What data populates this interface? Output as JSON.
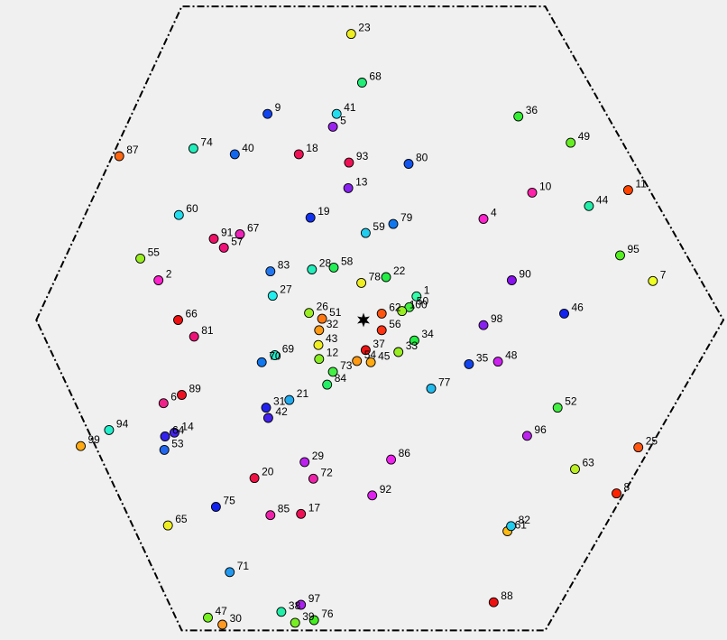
{
  "chart_data": {
    "type": "scatter",
    "title": "",
    "xlabel": "",
    "ylabel": "",
    "grid": false,
    "legend": "none",
    "boundary": {
      "shape": "hexagon",
      "style": "dash-dot",
      "color": "#000000",
      "vertices": [
        [
          0.05,
          0.5
        ],
        [
          0.25,
          0.01
        ],
        [
          0.75,
          0.01
        ],
        [
          0.995,
          0.5
        ],
        [
          0.75,
          0.985
        ],
        [
          0.25,
          0.985
        ]
      ]
    },
    "center_marker": {
      "symbol": "star",
      "color": "#000000",
      "x": 0.5,
      "y": 0.5
    },
    "points": [
      {
        "label": "1",
        "x": 0.573,
        "y": 0.463,
        "color": "#33ffaa"
      },
      {
        "label": "2",
        "x": 0.218,
        "y": 0.438,
        "color": "#ff22cc"
      },
      {
        "label": "4",
        "x": 0.665,
        "y": 0.342,
        "color": "#ff22cc"
      },
      {
        "label": "5",
        "x": 0.458,
        "y": 0.198,
        "color": "#9922ee"
      },
      {
        "label": "6",
        "x": 0.225,
        "y": 0.63,
        "color": "#ee2288"
      },
      {
        "label": "7",
        "x": 0.898,
        "y": 0.439,
        "color": "#eeff22"
      },
      {
        "label": "8",
        "x": 0.848,
        "y": 0.771,
        "color": "#ff2200"
      },
      {
        "label": "9",
        "x": 0.368,
        "y": 0.178,
        "color": "#1144ee"
      },
      {
        "label": "10",
        "x": 0.732,
        "y": 0.301,
        "color": "#ff22aa"
      },
      {
        "label": "11",
        "x": 0.864,
        "y": 0.297,
        "color": "#ff4400"
      },
      {
        "label": "12",
        "x": 0.439,
        "y": 0.561,
        "color": "#88ee22"
      },
      {
        "label": "13",
        "x": 0.479,
        "y": 0.294,
        "color": "#8822ee"
      },
      {
        "label": "14",
        "x": 0.24,
        "y": 0.676,
        "color": "#4422ee"
      },
      {
        "label": "17",
        "x": 0.414,
        "y": 0.803,
        "color": "#ee1155"
      },
      {
        "label": "18",
        "x": 0.411,
        "y": 0.241,
        "color": "#ee1155"
      },
      {
        "label": "19",
        "x": 0.427,
        "y": 0.34,
        "color": "#1133ee"
      },
      {
        "label": "20",
        "x": 0.35,
        "y": 0.747,
        "color": "#ee1144"
      },
      {
        "label": "21",
        "x": 0.398,
        "y": 0.625,
        "color": "#22aaee"
      },
      {
        "label": "22",
        "x": 0.531,
        "y": 0.433,
        "color": "#22ee44"
      },
      {
        "label": "23",
        "x": 0.483,
        "y": 0.053,
        "color": "#eeee22"
      },
      {
        "label": "25",
        "x": 0.878,
        "y": 0.699,
        "color": "#ff5511"
      },
      {
        "label": "26",
        "x": 0.425,
        "y": 0.489,
        "color": "#99ee22"
      },
      {
        "label": "27",
        "x": 0.375,
        "y": 0.462,
        "color": "#22eeee"
      },
      {
        "label": "28",
        "x": 0.429,
        "y": 0.421,
        "color": "#22eebb"
      },
      {
        "label": "29",
        "x": 0.419,
        "y": 0.722,
        "color": "#bb22ee"
      },
      {
        "label": "30",
        "x": 0.306,
        "y": 0.976,
        "color": "#ff9922"
      },
      {
        "label": "31",
        "x": 0.366,
        "y": 0.637,
        "color": "#2222ee"
      },
      {
        "label": "32",
        "x": 0.439,
        "y": 0.516,
        "color": "#ff9911"
      },
      {
        "label": "33",
        "x": 0.548,
        "y": 0.55,
        "color": "#99ee22"
      },
      {
        "label": "34",
        "x": 0.57,
        "y": 0.532,
        "color": "#22ee44"
      },
      {
        "label": "35",
        "x": 0.645,
        "y": 0.569,
        "color": "#1144ee"
      },
      {
        "label": "36",
        "x": 0.713,
        "y": 0.182,
        "color": "#33ee33"
      },
      {
        "label": "37",
        "x": 0.503,
        "y": 0.547,
        "color": "#ee1111"
      },
      {
        "label": "38",
        "x": 0.387,
        "y": 0.956,
        "color": "#22eeaa"
      },
      {
        "label": "39",
        "x": 0.406,
        "y": 0.973,
        "color": "#77ee22"
      },
      {
        "label": "40",
        "x": 0.323,
        "y": 0.241,
        "color": "#1166ee"
      },
      {
        "label": "41",
        "x": 0.463,
        "y": 0.178,
        "color": "#22ddee"
      },
      {
        "label": "42",
        "x": 0.369,
        "y": 0.653,
        "color": "#4422ee"
      },
      {
        "label": "43",
        "x": 0.438,
        "y": 0.539,
        "color": "#eeee22"
      },
      {
        "label": "44",
        "x": 0.81,
        "y": 0.322,
        "color": "#22eeaa"
      },
      {
        "label": "45",
        "x": 0.51,
        "y": 0.566,
        "color": "#ffaa11"
      },
      {
        "label": "46",
        "x": 0.776,
        "y": 0.49,
        "color": "#1122ee"
      },
      {
        "label": "47",
        "x": 0.286,
        "y": 0.965,
        "color": "#77ee22"
      },
      {
        "label": "48",
        "x": 0.685,
        "y": 0.565,
        "color": "#cc22ee"
      },
      {
        "label": "49",
        "x": 0.785,
        "y": 0.223,
        "color": "#66ee22"
      },
      {
        "label": "50",
        "x": 0.563,
        "y": 0.48,
        "color": "#44ee44"
      },
      {
        "label": "51",
        "x": 0.443,
        "y": 0.498,
        "color": "#ff7711"
      },
      {
        "label": "52",
        "x": 0.767,
        "y": 0.637,
        "color": "#44ee44"
      },
      {
        "label": "53",
        "x": 0.226,
        "y": 0.703,
        "color": "#2266ee"
      },
      {
        "label": "54",
        "x": 0.491,
        "y": 0.564,
        "color": "#ff9911"
      },
      {
        "label": "55",
        "x": 0.193,
        "y": 0.404,
        "color": "#99ee22"
      },
      {
        "label": "56",
        "x": 0.525,
        "y": 0.516,
        "color": "#ff3311"
      },
      {
        "label": "57",
        "x": 0.308,
        "y": 0.387,
        "color": "#ee1177"
      },
      {
        "label": "58",
        "x": 0.459,
        "y": 0.418,
        "color": "#22ee55"
      },
      {
        "label": "59",
        "x": 0.503,
        "y": 0.364,
        "color": "#22ccee"
      },
      {
        "label": "60",
        "x": 0.246,
        "y": 0.336,
        "color": "#22ddee"
      },
      {
        "label": "61",
        "x": 0.698,
        "y": 0.83,
        "color": "#ffbb11"
      },
      {
        "label": "62",
        "x": 0.525,
        "y": 0.49,
        "color": "#ff5511"
      },
      {
        "label": "63",
        "x": 0.791,
        "y": 0.733,
        "color": "#bbee22"
      },
      {
        "label": "64",
        "x": 0.227,
        "y": 0.682,
        "color": "#3322ee"
      },
      {
        "label": "65",
        "x": 0.231,
        "y": 0.821,
        "color": "#eeee22"
      },
      {
        "label": "66",
        "x": 0.245,
        "y": 0.5,
        "color": "#ee1111"
      },
      {
        "label": "67",
        "x": 0.33,
        "y": 0.366,
        "color": "#ee22bb"
      },
      {
        "label": "68",
        "x": 0.498,
        "y": 0.129,
        "color": "#22ee77"
      },
      {
        "label": "69",
        "x": 0.378,
        "y": 0.555,
        "color": "#22eecc"
      },
      {
        "label": "70",
        "x": 0.36,
        "y": 0.566,
        "color": "#1177ee"
      },
      {
        "label": "71",
        "x": 0.316,
        "y": 0.894,
        "color": "#2299ee"
      },
      {
        "label": "72",
        "x": 0.431,
        "y": 0.748,
        "color": "#ee22aa"
      },
      {
        "label": "73",
        "x": 0.458,
        "y": 0.581,
        "color": "#44ee44"
      },
      {
        "label": "74",
        "x": 0.266,
        "y": 0.232,
        "color": "#22eebb"
      },
      {
        "label": "75",
        "x": 0.297,
        "y": 0.792,
        "color": "#1122ee"
      },
      {
        "label": "76",
        "x": 0.432,
        "y": 0.969,
        "color": "#44ee22"
      },
      {
        "label": "77",
        "x": 0.593,
        "y": 0.607,
        "color": "#22bbee"
      },
      {
        "label": "78",
        "x": 0.497,
        "y": 0.442,
        "color": "#eeee22"
      },
      {
        "label": "79",
        "x": 0.541,
        "y": 0.35,
        "color": "#1177ee"
      },
      {
        "label": "80",
        "x": 0.562,
        "y": 0.256,
        "color": "#1155ee"
      },
      {
        "label": "81",
        "x": 0.267,
        "y": 0.526,
        "color": "#ee1177"
      },
      {
        "label": "82",
        "x": 0.703,
        "y": 0.822,
        "color": "#22ccee"
      },
      {
        "label": "83",
        "x": 0.372,
        "y": 0.424,
        "color": "#2277ee"
      },
      {
        "label": "84",
        "x": 0.45,
        "y": 0.601,
        "color": "#22ee66"
      },
      {
        "label": "85",
        "x": 0.372,
        "y": 0.805,
        "color": "#ee22aa"
      },
      {
        "label": "86",
        "x": 0.538,
        "y": 0.718,
        "color": "#ee22ee"
      },
      {
        "label": "87",
        "x": 0.164,
        "y": 0.244,
        "color": "#ff6611"
      },
      {
        "label": "88",
        "x": 0.679,
        "y": 0.941,
        "color": "#ee1111"
      },
      {
        "label": "89",
        "x": 0.25,
        "y": 0.617,
        "color": "#ee1122"
      },
      {
        "label": "90",
        "x": 0.704,
        "y": 0.438,
        "color": "#8811ee"
      },
      {
        "label": "91",
        "x": 0.294,
        "y": 0.373,
        "color": "#ee1166"
      },
      {
        "label": "92",
        "x": 0.512,
        "y": 0.774,
        "color": "#dd22ee"
      },
      {
        "label": "93",
        "x": 0.48,
        "y": 0.254,
        "color": "#ee1155"
      },
      {
        "label": "94",
        "x": 0.15,
        "y": 0.672,
        "color": "#22eecc"
      },
      {
        "label": "95",
        "x": 0.853,
        "y": 0.399,
        "color": "#55ee22"
      },
      {
        "label": "96",
        "x": 0.725,
        "y": 0.681,
        "color": "#bb22ee"
      },
      {
        "label": "97",
        "x": 0.414,
        "y": 0.945,
        "color": "#aa22ee"
      },
      {
        "label": "98",
        "x": 0.665,
        "y": 0.508,
        "color": "#8822ee"
      },
      {
        "label": "99",
        "x": 0.111,
        "y": 0.697,
        "color": "#ffaa11"
      },
      {
        "label": "100",
        "x": 0.553,
        "y": 0.486,
        "color": "#99ee22"
      }
    ]
  }
}
